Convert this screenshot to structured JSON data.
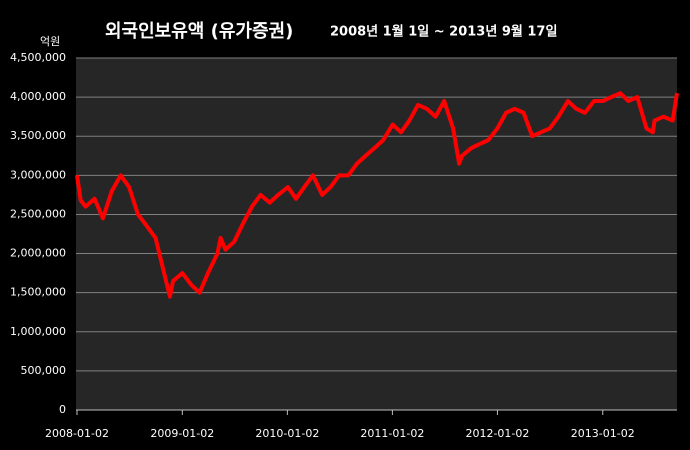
{
  "chart_data": {
    "type": "line",
    "title": "외국인보유액 (유가증권)",
    "subtitle": "2008년 1월 1일 ~ 2013년 9월 17일",
    "y_label": "억원",
    "x": [
      "2008-01-02",
      "2008-01-15",
      "2008-02-01",
      "2008-03-03",
      "2008-04-01",
      "2008-05-02",
      "2008-06-02",
      "2008-07-01",
      "2008-08-01",
      "2008-09-01",
      "2008-10-01",
      "2008-11-03",
      "2008-11-20",
      "2008-12-01",
      "2009-01-02",
      "2009-02-02",
      "2009-03-03",
      "2009-04-01",
      "2009-05-04",
      "2009-05-15",
      "2009-06-01",
      "2009-07-01",
      "2009-08-03",
      "2009-09-01",
      "2009-10-01",
      "2009-11-02",
      "2009-12-01",
      "2010-01-04",
      "2010-02-01",
      "2010-03-02",
      "2010-04-01",
      "2010-05-03",
      "2010-06-01",
      "2010-07-01",
      "2010-08-02",
      "2010-09-01",
      "2010-10-01",
      "2010-11-01",
      "2010-12-01",
      "2011-01-03",
      "2011-02-01",
      "2011-03-02",
      "2011-04-01",
      "2011-05-02",
      "2011-06-01",
      "2011-07-01",
      "2011-08-01",
      "2011-08-22",
      "2011-09-01",
      "2011-10-04",
      "2011-11-01",
      "2011-12-01",
      "2012-01-02",
      "2012-02-01",
      "2012-03-02",
      "2012-04-02",
      "2012-05-02",
      "2012-06-01",
      "2012-07-02",
      "2012-08-01",
      "2012-09-03",
      "2012-10-02",
      "2012-11-01",
      "2012-12-03",
      "2013-01-02",
      "2013-02-01",
      "2013-03-04",
      "2013-04-01",
      "2013-05-02",
      "2013-06-03",
      "2013-06-25",
      "2013-07-01",
      "2013-08-01",
      "2013-09-02",
      "2013-09-17"
    ],
    "series": [
      {
        "name": "외국인보유액",
        "color": "#ff0000",
        "values": [
          3000000,
          2680000,
          2600000,
          2700000,
          2450000,
          2800000,
          3000000,
          2850000,
          2500000,
          2350000,
          2200000,
          1700000,
          1450000,
          1650000,
          1750000,
          1600000,
          1500000,
          1750000,
          2000000,
          2200000,
          2050000,
          2150000,
          2400000,
          2600000,
          2750000,
          2650000,
          2750000,
          2850000,
          2700000,
          2850000,
          3000000,
          2750000,
          2850000,
          3000000,
          3000000,
          3150000,
          3250000,
          3350000,
          3450000,
          3650000,
          3550000,
          3700000,
          3900000,
          3850000,
          3750000,
          3950000,
          3600000,
          3150000,
          3250000,
          3350000,
          3400000,
          3450000,
          3600000,
          3800000,
          3850000,
          3800000,
          3500000,
          3550000,
          3600000,
          3750000,
          3950000,
          3850000,
          3800000,
          3950000,
          3950000,
          4000000,
          4050000,
          3950000,
          4000000,
          3600000,
          3550000,
          3700000,
          3750000,
          3700000,
          4050000
        ]
      }
    ],
    "xlim": [
      "2008-01-02",
      "2013-09-17"
    ],
    "xticks": [
      "2008-01-02",
      "2009-01-02",
      "2010-01-02",
      "2011-01-02",
      "2012-01-02",
      "2013-01-02"
    ],
    "ylim": [
      0,
      4500000
    ],
    "yticks": [
      0,
      {
        "value": 500000,
        "label": "500,000"
      },
      {
        "value": 1000000,
        "label": "1,000,000"
      },
      {
        "value": 1500000,
        "label": "1,500,000"
      },
      {
        "value": 2000000,
        "label": "2,000,000"
      },
      {
        "value": 2500000,
        "label": "2,500,000"
      },
      {
        "value": 3000000,
        "label": "3,000,000"
      },
      {
        "value": 3500000,
        "label": "3,500,000"
      },
      {
        "value": 4000000,
        "label": "4,000,000"
      },
      {
        "value": 4500000,
        "label": "4,500,000"
      }
    ],
    "grid": true
  }
}
